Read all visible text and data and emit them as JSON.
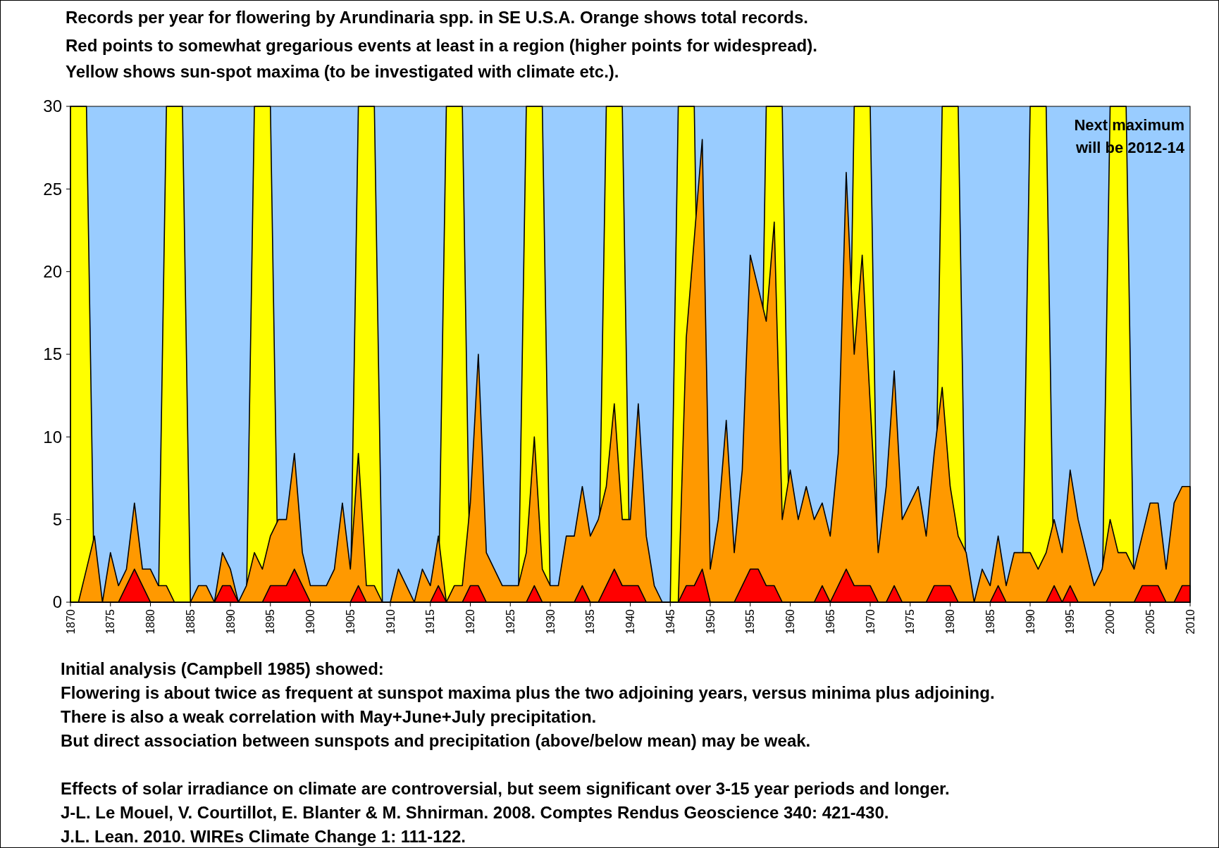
{
  "chart_data": {
    "type": "area",
    "title": "Records per year for flowering by Arundinaria spp. in SE U.S.A. Orange shows total records.",
    "subtitle": "Red points to somewhat gregarious events at least in a region (higher points for widespread).\nYellow shows sun-spot maxima (to be investigated with climate etc.).",
    "x": [
      1870,
      1871,
      1872,
      1873,
      1874,
      1875,
      1876,
      1877,
      1878,
      1879,
      1880,
      1881,
      1882,
      1883,
      1884,
      1885,
      1886,
      1887,
      1888,
      1889,
      1890,
      1891,
      1892,
      1893,
      1894,
      1895,
      1896,
      1897,
      1898,
      1899,
      1900,
      1901,
      1902,
      1903,
      1904,
      1905,
      1906,
      1907,
      1908,
      1909,
      1910,
      1911,
      1912,
      1913,
      1914,
      1915,
      1916,
      1917,
      1918,
      1919,
      1920,
      1921,
      1922,
      1923,
      1924,
      1925,
      1926,
      1927,
      1928,
      1929,
      1930,
      1931,
      1932,
      1933,
      1934,
      1935,
      1936,
      1937,
      1938,
      1939,
      1940,
      1941,
      1942,
      1943,
      1944,
      1945,
      1946,
      1947,
      1948,
      1949,
      1950,
      1951,
      1952,
      1953,
      1954,
      1955,
      1956,
      1957,
      1958,
      1959,
      1960,
      1961,
      1962,
      1963,
      1964,
      1965,
      1966,
      1967,
      1968,
      1969,
      1970,
      1971,
      1972,
      1973,
      1974,
      1975,
      1976,
      1977,
      1978,
      1979,
      1980,
      1981,
      1982,
      1983,
      1984,
      1985,
      1986,
      1987,
      1988,
      1989,
      1990,
      1991,
      1992,
      1993,
      1994,
      1995,
      1996,
      1997,
      1998,
      1999,
      2000,
      2001,
      2002,
      2003,
      2004,
      2005,
      2006,
      2007,
      2008,
      2009,
      2010
    ],
    "series": [
      {
        "color": "#ffff00",
        "values": [
          30,
          30,
          30,
          0,
          0,
          0,
          0,
          0,
          0,
          0,
          0,
          0,
          30,
          30,
          30,
          0,
          0,
          0,
          0,
          0,
          0,
          0,
          0,
          30,
          30,
          30,
          0,
          0,
          0,
          0,
          0,
          0,
          0,
          0,
          0,
          0,
          30,
          30,
          30,
          0,
          0,
          0,
          0,
          0,
          0,
          0,
          0,
          30,
          30,
          30,
          0,
          0,
          0,
          0,
          0,
          0,
          0,
          30,
          30,
          30,
          0,
          0,
          0,
          0,
          0,
          0,
          0,
          30,
          30,
          30,
          0,
          0,
          0,
          0,
          0,
          0,
          30,
          30,
          30,
          0,
          0,
          0,
          0,
          0,
          0,
          0,
          0,
          30,
          30,
          30,
          0,
          0,
          0,
          0,
          0,
          0,
          0,
          0,
          30,
          30,
          30,
          0,
          0,
          0,
          0,
          0,
          0,
          0,
          0,
          30,
          30,
          30,
          0,
          0,
          0,
          0,
          0,
          0,
          0,
          0,
          30,
          30,
          30,
          0,
          0,
          0,
          0,
          0,
          0,
          0,
          30,
          30,
          30,
          0,
          0,
          0,
          0,
          0,
          0,
          0,
          0
        ]
      },
      {
        "color": "#ff9900",
        "values": [
          0,
          0,
          2,
          4,
          0,
          3,
          1,
          2,
          6,
          2,
          2,
          1,
          1,
          0,
          0,
          0,
          1,
          1,
          0,
          3,
          2,
          0,
          1,
          3,
          2,
          4,
          5,
          5,
          9,
          3,
          1,
          1,
          1,
          2,
          6,
          2,
          9,
          1,
          1,
          0,
          0,
          2,
          1,
          0,
          2,
          1,
          4,
          0,
          1,
          1,
          6,
          15,
          3,
          2,
          1,
          1,
          1,
          3,
          10,
          2,
          1,
          1,
          4,
          4,
          7,
          4,
          5,
          7,
          12,
          5,
          5,
          12,
          4,
          1,
          0,
          0,
          0,
          16,
          22,
          28,
          2,
          5,
          11,
          3,
          8,
          21,
          19,
          17,
          23,
          5,
          8,
          5,
          7,
          5,
          6,
          4,
          9,
          26,
          15,
          21,
          12,
          3,
          7,
          14,
          5,
          6,
          7,
          4,
          9,
          13,
          7,
          4,
          3,
          0,
          2,
          1,
          4,
          1,
          3,
          3,
          3,
          2,
          3,
          5,
          3,
          8,
          5,
          3,
          1,
          2,
          5,
          3,
          3,
          2,
          4,
          6,
          6,
          2,
          6,
          7,
          7
        ]
      },
      {
        "color": "#ff0000",
        "values": [
          0,
          0,
          0,
          0,
          0,
          0,
          0,
          1,
          2,
          1,
          0,
          0,
          0,
          0,
          0,
          0,
          0,
          0,
          0,
          1,
          1,
          0,
          0,
          0,
          0,
          1,
          1,
          1,
          2,
          1,
          0,
          0,
          0,
          0,
          0,
          0,
          1,
          0,
          0,
          0,
          0,
          0,
          0,
          0,
          0,
          0,
          1,
          0,
          0,
          0,
          1,
          1,
          0,
          0,
          0,
          0,
          0,
          0,
          1,
          0,
          0,
          0,
          0,
          0,
          1,
          0,
          0,
          1,
          2,
          1,
          1,
          1,
          0,
          0,
          0,
          0,
          0,
          1,
          1,
          2,
          0,
          0,
          0,
          0,
          1,
          2,
          2,
          1,
          1,
          0,
          0,
          0,
          0,
          0,
          1,
          0,
          1,
          2,
          1,
          1,
          1,
          0,
          0,
          1,
          0,
          0,
          0,
          0,
          1,
          1,
          1,
          0,
          0,
          0,
          0,
          0,
          1,
          0,
          0,
          0,
          0,
          0,
          0,
          1,
          0,
          1,
          0,
          0,
          0,
          0,
          0,
          0,
          0,
          0,
          1,
          1,
          1,
          0,
          0,
          1,
          1
        ]
      }
    ],
    "xlim": [
      1870,
      2010
    ],
    "xticks": [
      1870,
      1875,
      1880,
      1885,
      1890,
      1895,
      1900,
      1905,
      1910,
      1915,
      1920,
      1925,
      1930,
      1935,
      1940,
      1945,
      1950,
      1955,
      1960,
      1965,
      1970,
      1975,
      1980,
      1985,
      1990,
      1995,
      2000,
      2005,
      2010
    ],
    "ylim": [
      0,
      30
    ],
    "yticks": [
      0,
      5,
      10,
      15,
      20,
      25,
      30
    ],
    "grid": false,
    "annotations": [
      "Next maximum\nwill be 2012-14",
      "Initial analysis (Campbell 1985) showed:",
      "Flowering is about twice as frequent at sunspot maxima plus the two adjoining years, versus minima plus adjoining.",
      "There is also a weak correlation with May+June+July precipitation.",
      "But direct association between sunspots and precipitation (above/below mean) may be weak.",
      "Effects of solar irradiance on climate are controversial, but seem significant over 3-15 year periods and longer.",
      "J-L. Le Mouel, V. Courtillot, E. Blanter & M. Shnirman. 2008. Comptes Rendus Geoscience 340: 421-430.",
      "J.L. Lean. 2010. WIREs Climate Change 1: 111-122."
    ]
  }
}
